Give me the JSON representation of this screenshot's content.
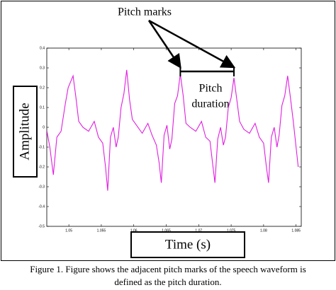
{
  "chart_data": {
    "type": "line",
    "xlabel": "Time (s)",
    "ylabel": "Amplitude",
    "annotations": {
      "pitch_marks_label": "Pitch marks",
      "pitch_duration_label": [
        "Pitch",
        "duration"
      ]
    },
    "pitch_marks": [
      1.06717,
      1.07543
    ],
    "color": "#e01ee0",
    "xlim": [
      1.0466,
      1.0858
    ],
    "xticks": [
      1.05,
      1.055,
      1.06,
      1.065,
      1.07,
      1.075,
      1.08,
      1.085
    ],
    "ylim": [
      -0.5,
      0.4
    ],
    "yticks": [
      0.4,
      0.3,
      0.2,
      0.1,
      0,
      -0.1,
      -0.2,
      -0.3,
      -0.4,
      -0.5
    ],
    "x": [
      1.04663,
      1.04707,
      1.04761,
      1.04815,
      1.0488,
      1.04946,
      1.04989,
      1.05065,
      1.05109,
      1.05152,
      1.05217,
      1.05304,
      1.05391,
      1.05456,
      1.05522,
      1.05565,
      1.05598,
      1.05641,
      1.05685,
      1.05728,
      1.05761,
      1.05804,
      1.05848,
      1.05891,
      1.05935,
      1.05978,
      1.06043,
      1.0613,
      1.06217,
      1.06282,
      1.06348,
      1.06391,
      1.06424,
      1.06467,
      1.06511,
      1.06554,
      1.06587,
      1.0663,
      1.06674,
      1.06717,
      1.06761,
      1.06804,
      1.06869,
      1.06956,
      1.07043,
      1.07108,
      1.07174,
      1.07217,
      1.0725,
      1.07293,
      1.07337,
      1.0738,
      1.07413,
      1.07456,
      1.075,
      1.07543,
      1.07587,
      1.0763,
      1.07695,
      1.07782,
      1.07869,
      1.07934,
      1.08,
      1.08043,
      1.08076,
      1.08119,
      1.08163,
      1.08206,
      1.08239,
      1.08282,
      1.08326,
      1.0837,
      1.08413,
      1.08457,
      1.085,
      1.08533
    ],
    "values": [
      -0.02,
      -0.1,
      -0.24,
      -0.05,
      -0.02,
      0.12,
      0.2,
      0.26,
      0.15,
      0.03,
      0.0,
      -0.02,
      0.03,
      -0.05,
      -0.08,
      -0.2,
      -0.32,
      -0.05,
      0.0,
      -0.1,
      -0.05,
      0.1,
      0.17,
      0.29,
      0.14,
      0.04,
      0.01,
      -0.03,
      0.02,
      -0.04,
      -0.09,
      -0.18,
      -0.28,
      -0.04,
      0.01,
      -0.11,
      -0.06,
      0.12,
      0.16,
      0.27,
      0.16,
      0.02,
      0.0,
      -0.02,
      0.03,
      -0.05,
      -0.07,
      -0.19,
      -0.28,
      -0.06,
      0.0,
      -0.09,
      -0.05,
      0.1,
      0.15,
      0.25,
      0.14,
      0.03,
      -0.01,
      -0.03,
      0.02,
      -0.05,
      -0.08,
      -0.2,
      -0.28,
      -0.05,
      0.0,
      -0.1,
      -0.04,
      0.11,
      0.16,
      0.26,
      0.15,
      0.03,
      -0.1,
      -0.2
    ]
  },
  "caption": [
    "Figure 1. Figure shows the adjacent pitch marks of the speech waveform is",
    "defined as the pitch duration."
  ]
}
